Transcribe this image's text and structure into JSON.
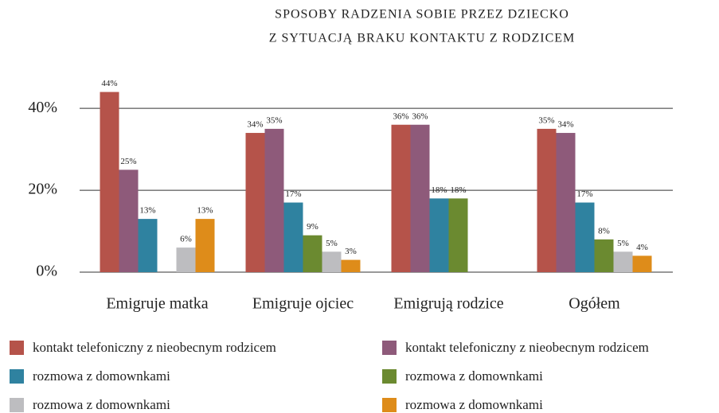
{
  "chart_data": {
    "type": "bar",
    "title": [
      "SPOSOBY RADZENIA SOBIE PRZEZ DZIECKO",
      "Z SYTUACJĄ BRAKU KONTAKTU Z RODZICEM"
    ],
    "categories": [
      "Emigruje matka",
      "Emigruje ojciec",
      "Emigrują rodzice",
      "Ogółem"
    ],
    "series": [
      {
        "name": "kontakt telefoniczny z nieobecnym rodzicem",
        "color": "#b5534a",
        "values": [
          44,
          34,
          36,
          35
        ],
        "value_labels": [
          "44%",
          "34%",
          "36%",
          "35%"
        ]
      },
      {
        "name": "kontakt telefoniczny z nieobecnym rodzicem",
        "color": "#8e5a7a",
        "values": [
          25,
          35,
          36,
          34
        ],
        "value_labels": [
          "25%",
          "35%",
          "36%",
          "34%"
        ]
      },
      {
        "name": "rozmowa z domownkami",
        "color": "#2f82a0",
        "values": [
          13,
          17,
          18,
          17
        ],
        "value_labels": [
          "13%",
          "17%",
          "18%",
          "17%"
        ]
      },
      {
        "name": "rozmowa z domownkami",
        "color": "#6b8a30",
        "values": [
          null,
          9,
          18,
          8
        ],
        "value_labels": [
          null,
          "9%",
          "18%",
          "8%"
        ]
      },
      {
        "name": "rozmowa z domownkami",
        "color": "#bdbdc0",
        "values": [
          6,
          5,
          null,
          5
        ],
        "value_labels": [
          "6%",
          "5%",
          null,
          "5%"
        ]
      },
      {
        "name": "rozmowa z domownkami",
        "color": "#de8c1a",
        "values": [
          13,
          3,
          null,
          4
        ],
        "value_labels": [
          "13%",
          "3%",
          null,
          "4%"
        ]
      }
    ],
    "ylim": [
      0,
      48
    ],
    "yticks": [
      {
        "value": 0,
        "label": "0%"
      },
      {
        "value": 20,
        "label": "20%"
      },
      {
        "value": 40,
        "label": "40%"
      }
    ],
    "grid": true
  }
}
